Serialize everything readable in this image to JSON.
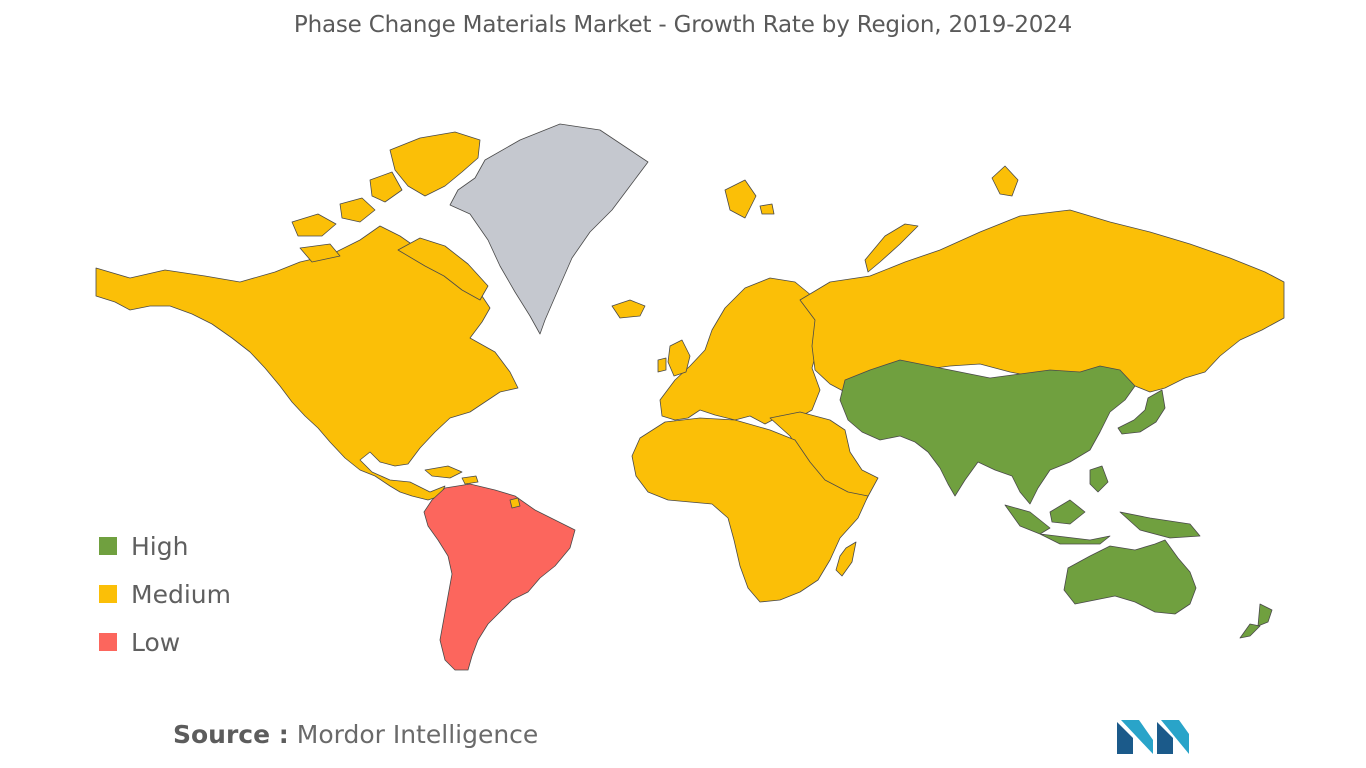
{
  "title": "Phase Change Materials Market - Growth Rate by Region, 2019-2024",
  "legend": [
    {
      "label": "High",
      "color": "#70a03f"
    },
    {
      "label": "Medium",
      "color": "#fbbf07"
    },
    {
      "label": "Low",
      "color": "#fc665d"
    }
  ],
  "no_data_color": "#c5c8cf",
  "regions": [
    {
      "name": "North America",
      "level": "Medium"
    },
    {
      "name": "Greenland",
      "level": "No data"
    },
    {
      "name": "South America",
      "level": "Low"
    },
    {
      "name": "Europe",
      "level": "Medium"
    },
    {
      "name": "Russia",
      "level": "Medium"
    },
    {
      "name": "Middle East",
      "level": "Medium"
    },
    {
      "name": "Africa",
      "level": "Medium"
    },
    {
      "name": "Asia",
      "level": "High"
    },
    {
      "name": "Australia and Oceania",
      "level": "High"
    }
  ],
  "source": {
    "label": "Source :",
    "text": "Mordor Intelligence"
  },
  "logo_color": "#29a4c9"
}
